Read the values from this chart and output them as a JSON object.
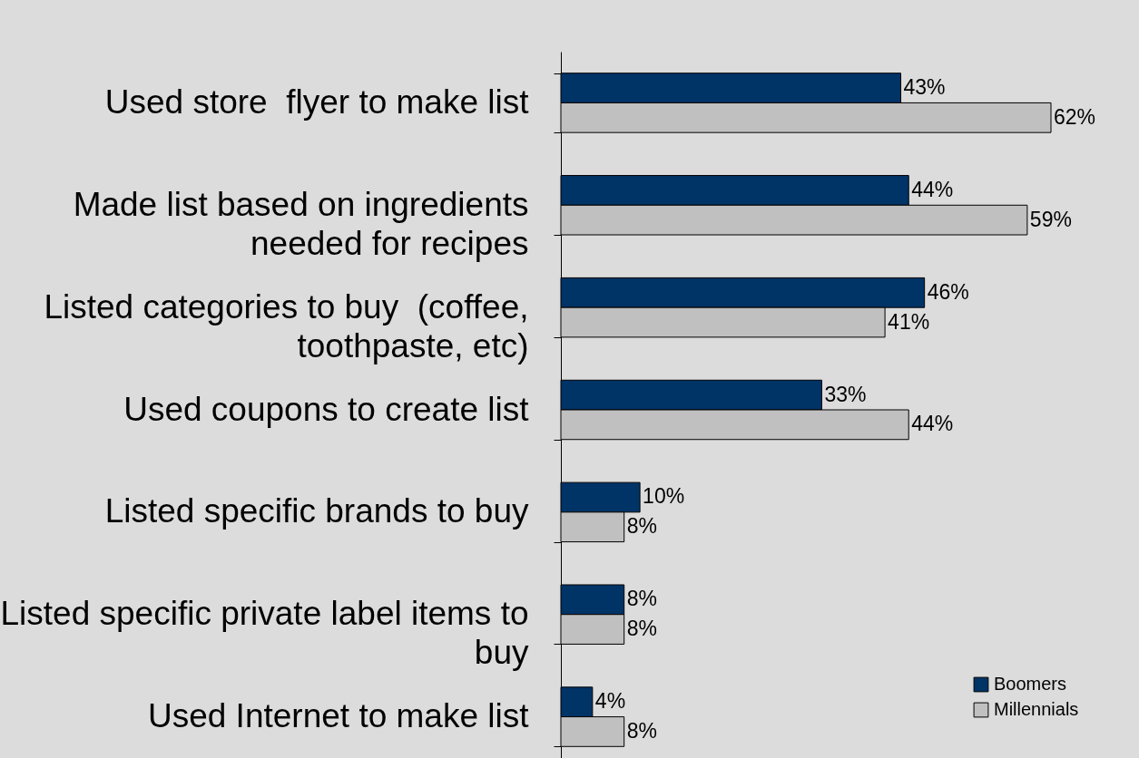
{
  "chart_data": {
    "type": "bar",
    "orientation": "horizontal",
    "categories": [
      "Used store  flyer to make list",
      "Made list based on ingredients needed for recipes",
      "Listed categories to buy  (coffee, toothpaste, etc)",
      "Used coupons to create list",
      "Listed specific brands to buy",
      "Listed specific private label items to buy",
      "Used Internet to make list"
    ],
    "series": [
      {
        "name": "Boomers",
        "color": "#003366",
        "values": [
          43,
          44,
          46,
          33,
          10,
          8,
          4
        ],
        "value_labels": [
          "43%",
          "44%",
          "46%",
          "33%",
          "10%",
          "8%",
          "4%"
        ]
      },
      {
        "name": "Millennials",
        "color": "#c0c0c0",
        "values": [
          62,
          59,
          41,
          44,
          8,
          8,
          8
        ],
        "value_labels": [
          "62%",
          "59%",
          "41%",
          "44%",
          "8%",
          "8%",
          "8%"
        ]
      }
    ],
    "legend": "bottom right"
  }
}
